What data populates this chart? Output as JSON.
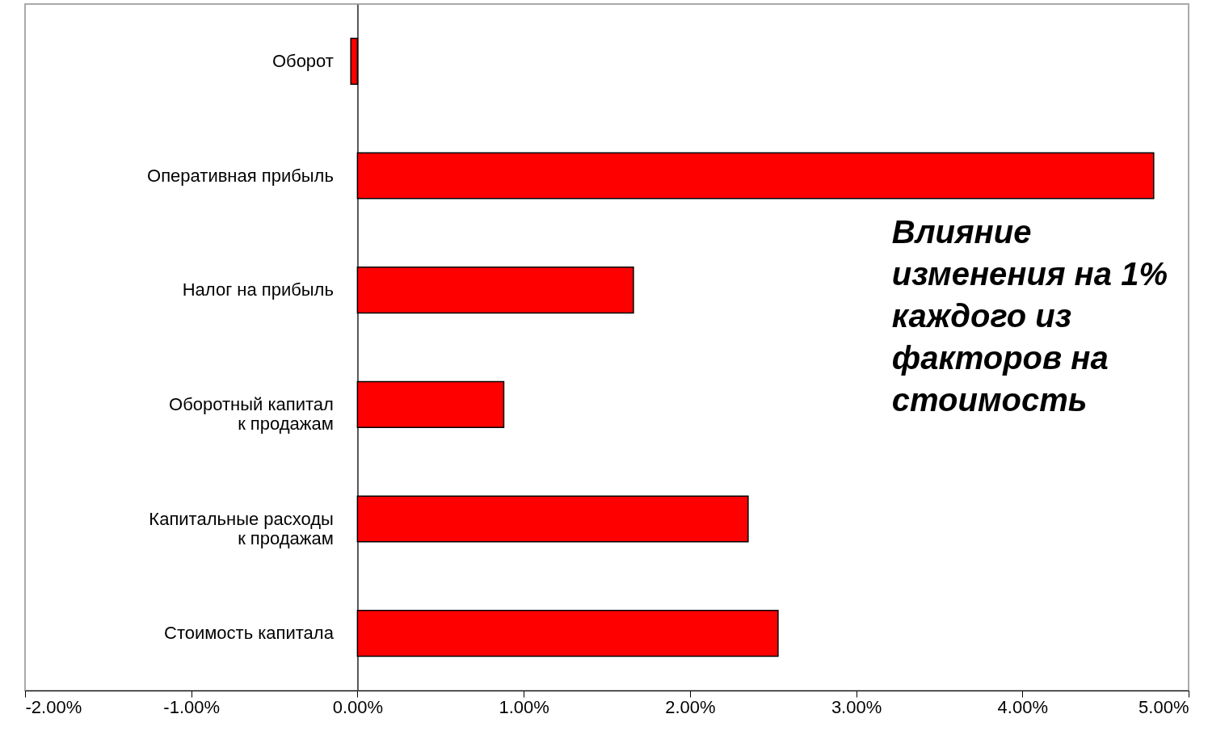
{
  "chart_data": {
    "type": "bar",
    "orientation": "horizontal",
    "categories": [
      "Оборот",
      "Оперативная прибыль",
      "Налог на прибыль",
      "Оборотный капитал\nк продажам",
      "Капитальные расходы\nк продажам",
      "Стоимость капитала"
    ],
    "values": [
      -0.04,
      4.79,
      1.66,
      0.88,
      2.35,
      2.53
    ],
    "color": "#ff0000",
    "xlim": [
      -2,
      5
    ],
    "xticks": [
      {
        "value": -2,
        "label": "-2.00%"
      },
      {
        "value": -1,
        "label": "-1.00%"
      },
      {
        "value": 0,
        "label": "0.00%"
      },
      {
        "value": 1,
        "label": "1.00%"
      },
      {
        "value": 2,
        "label": "2.00%"
      },
      {
        "value": 3,
        "label": "3.00%"
      },
      {
        "value": 4,
        "label": "4.00%"
      },
      {
        "value": 5,
        "label": "5.00%"
      }
    ],
    "annotations": [
      "Влияние\nизменения на 1%\nкаждого из\nфакторов на\nстоимость"
    ],
    "grid": false
  }
}
